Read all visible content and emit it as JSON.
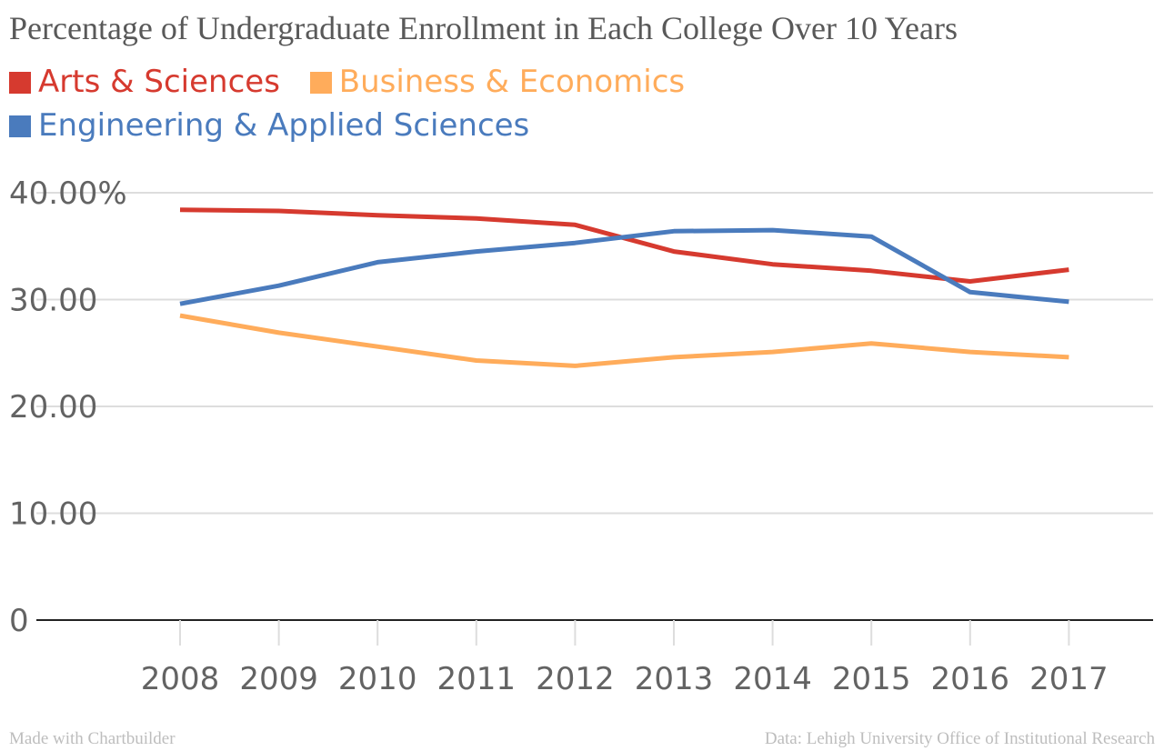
{
  "chart_data": {
    "type": "line",
    "title": "Percentage of Undergraduate Enrollment in Each College Over 10 Years",
    "categories": [
      "2008",
      "2009",
      "2010",
      "2011",
      "2012",
      "2013",
      "2014",
      "2015",
      "2016",
      "2017"
    ],
    "series": [
      {
        "name": "Arts & Sciences",
        "color": "#d63a2f",
        "values": [
          38.4,
          38.3,
          37.9,
          37.6,
          37.0,
          34.5,
          33.3,
          32.7,
          31.7,
          32.8
        ]
      },
      {
        "name": "Business & Economics",
        "color": "#ffac5b",
        "values": [
          28.5,
          26.9,
          25.6,
          24.3,
          23.8,
          24.6,
          25.1,
          25.9,
          25.1,
          24.6
        ]
      },
      {
        "name": "Engineering & Applied Sciences",
        "color": "#4a7bbd",
        "values": [
          29.6,
          31.3,
          33.5,
          34.5,
          35.3,
          36.4,
          36.5,
          35.9,
          30.7,
          29.8
        ]
      }
    ],
    "ylim": [
      0,
      40
    ],
    "yticks": [
      {
        "value": 40,
        "label": "40.00%"
      },
      {
        "value": 30,
        "label": "30.00"
      },
      {
        "value": 20,
        "label": "20.00"
      },
      {
        "value": 10,
        "label": "10.00"
      },
      {
        "value": 0,
        "label": "0"
      }
    ],
    "xlabel": "",
    "ylabel": "",
    "grid": true,
    "legend_position": "top-left"
  },
  "footer": {
    "left": "Made with Chartbuilder",
    "right": "Data: Lehigh University Office of Institutional Research"
  }
}
